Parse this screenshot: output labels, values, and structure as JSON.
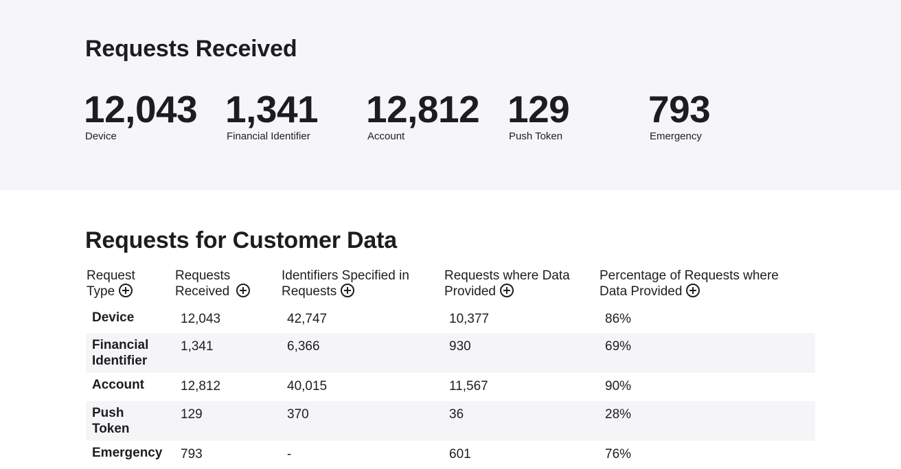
{
  "received_section": {
    "title": "Requests Received",
    "stats": [
      {
        "value": "12,043",
        "label": "Device"
      },
      {
        "value": "1,341",
        "label": "Financial Identifier"
      },
      {
        "value": "12,812",
        "label": "Account"
      },
      {
        "value": "129",
        "label": "Push Token"
      },
      {
        "value": "793",
        "label": "Emergency"
      }
    ]
  },
  "customer_section": {
    "title": "Requests for Customer Data",
    "headers": [
      {
        "line1": "Request",
        "line2": "Type"
      },
      {
        "line1": "Requests",
        "line2": "Received"
      },
      {
        "line1": "Identifiers Specified in",
        "line2": "Requests"
      },
      {
        "line1": "Requests where Data",
        "line2": "Provided"
      },
      {
        "line1": "Percentage of Requests where",
        "line2": "Data Provided"
      }
    ],
    "rows": [
      {
        "type_line1": "Device",
        "type_line2": "",
        "received": "12,043",
        "identifiers": "42,747",
        "provided": "10,377",
        "percentage": "86%"
      },
      {
        "type_line1": "Financial",
        "type_line2": "Identifier",
        "received": "1,341",
        "identifiers": "6,366",
        "provided": "930",
        "percentage": "69%"
      },
      {
        "type_line1": "Account",
        "type_line2": "",
        "received": "12,812",
        "identifiers": "40,015",
        "provided": "11,567",
        "percentage": "90%"
      },
      {
        "type_line1": "Push",
        "type_line2": "Token",
        "received": "129",
        "identifiers": "370",
        "provided": "36",
        "percentage": "28%"
      },
      {
        "type_line1": "Emergency",
        "type_line2": "",
        "received": "793",
        "identifiers": "-",
        "provided": "601",
        "percentage": "76%"
      }
    ]
  },
  "colors": {
    "panel_background": "#f6f6f8",
    "alt_row_background": "#f5f5f7",
    "text": "#1d1d1f"
  }
}
